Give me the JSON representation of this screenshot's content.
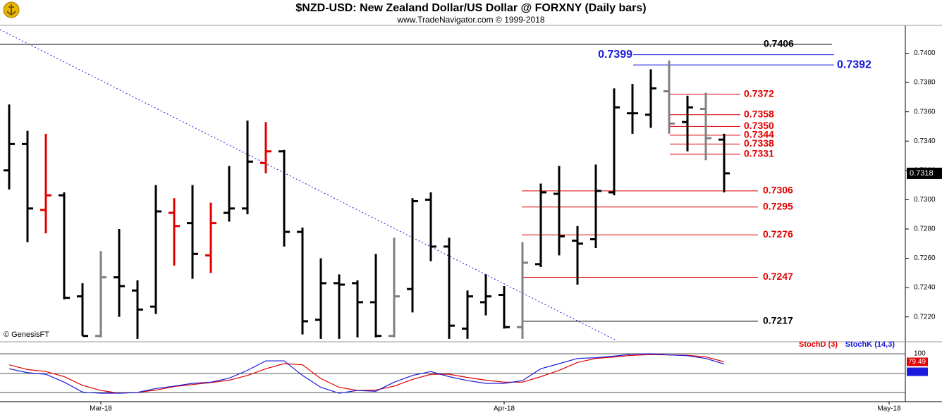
{
  "chart_data": [
    {
      "type": "ohlc",
      "title": "$NZD-USD:  New Zealand Dollar/US Dollar @ FORXNY  (Daily bars)",
      "subtitle": "www.TradeNavigator.com © 1999-2018",
      "source": "© GenesisFT",
      "categories": [
        null,
        null,
        null,
        null,
        null,
        "Mar-18",
        null,
        null,
        null,
        null,
        null,
        null,
        null,
        null,
        null,
        null,
        null,
        null,
        null,
        null,
        null,
        null,
        null,
        null,
        null,
        null,
        null,
        "Apr-18",
        null,
        null,
        null,
        null,
        null,
        null,
        null,
        null,
        null,
        null,
        null,
        null,
        null,
        null,
        null,
        null,
        null,
        null,
        null,
        null,
        "May-18"
      ],
      "open": [
        0.732,
        0.7338,
        0.7293,
        0.7303,
        0.7234,
        0.7207,
        0.7247,
        0.7238,
        0.7227,
        0.7291,
        0.7284,
        0.7262,
        0.7291,
        0.7294,
        0.7325,
        0.7333,
        0.7278,
        0.7218,
        0.7243,
        0.7243,
        0.723,
        0.7207,
        0.7239,
        0.73,
        0.7268,
        0.7212,
        0.723,
        0.7235,
        0.7213,
        0.7256,
        0.7304,
        0.7272,
        0.7273,
        0.7305,
        0.7359,
        0.7358,
        0.7374,
        0.7353,
        0.7362,
        0.7341,
        null,
        null,
        null,
        null,
        null,
        null,
        null,
        null,
        null
      ],
      "high": [
        0.7365,
        0.7347,
        0.7345,
        0.7305,
        0.7243,
        0.7265,
        0.728,
        0.7245,
        0.731,
        0.7301,
        0.731,
        0.7298,
        0.7323,
        0.7354,
        0.7353,
        0.7334,
        0.7281,
        0.726,
        0.7249,
        0.7245,
        0.7263,
        0.7274,
        0.7301,
        0.7305,
        0.7274,
        0.7238,
        0.7249,
        0.7241,
        0.7271,
        0.7311,
        0.7323,
        0.7282,
        0.7324,
        0.7376,
        0.7379,
        0.7389,
        0.7395,
        0.7371,
        0.7373,
        0.7345,
        null,
        null,
        null,
        null,
        null,
        null,
        null,
        null,
        null
      ],
      "low": [
        0.7307,
        0.7271,
        0.7277,
        0.7232,
        0.7207,
        0.7206,
        0.722,
        0.7205,
        0.7222,
        0.7255,
        0.7246,
        0.725,
        0.7285,
        0.729,
        0.7318,
        0.7268,
        0.7208,
        0.7205,
        0.7205,
        0.7206,
        0.7206,
        0.7206,
        0.7223,
        0.7258,
        0.7205,
        0.7205,
        0.7221,
        0.7212,
        0.7205,
        0.7254,
        0.7262,
        0.7242,
        0.7267,
        0.7303,
        0.7345,
        0.7349,
        0.7345,
        0.7333,
        0.7327,
        0.7305,
        null,
        null,
        null,
        null,
        null,
        null,
        null,
        null,
        null
      ],
      "close": [
        0.7338,
        0.7294,
        0.7303,
        0.7233,
        0.7207,
        0.7247,
        0.7241,
        0.7225,
        0.7292,
        0.7282,
        0.7263,
        0.7284,
        0.7294,
        0.7326,
        0.7333,
        0.7278,
        0.7217,
        0.7243,
        0.7242,
        0.723,
        0.7207,
        0.7234,
        0.7299,
        0.7268,
        0.7214,
        0.7234,
        0.7234,
        0.7213,
        0.7257,
        0.7305,
        0.7275,
        0.727,
        0.7306,
        0.7363,
        0.7359,
        0.7376,
        0.7352,
        0.7363,
        0.7342,
        0.7318,
        null,
        null,
        null,
        null,
        null,
        null,
        null,
        null,
        null
      ],
      "bar_colors": [
        "#000000",
        "#000000",
        "#e00000",
        "#000000",
        "#000000",
        "#808080",
        "#000000",
        "#000000",
        "#000000",
        "#e00000",
        "#000000",
        "#e00000",
        "#000000",
        "#000000",
        "#e00000",
        "#000000",
        "#000000",
        "#000000",
        "#000000",
        "#000000",
        "#000000",
        "#808080",
        "#000000",
        "#000000",
        "#000000",
        "#000000",
        "#000000",
        "#000000",
        "#808080",
        "#000000",
        "#000000",
        "#000000",
        "#000000",
        "#000000",
        "#000000",
        "#000000",
        "#808080",
        "#000000",
        "#808080",
        "#000000",
        null,
        null,
        null,
        null,
        null,
        null,
        null,
        null,
        null
      ],
      "ylim": [
        0.7203,
        0.7419
      ],
      "yticks": [
        {
          "value": 0.722,
          "label": "0.7220"
        },
        {
          "value": 0.724,
          "label": "0.7240"
        },
        {
          "value": 0.726,
          "label": "0.7260"
        },
        {
          "value": 0.728,
          "label": "0.7280"
        },
        {
          "value": 0.73,
          "label": "0.7300"
        },
        {
          "value": 0.732,
          "label": "0.7320"
        },
        {
          "value": 0.734,
          "label": "0.7340"
        },
        {
          "value": 0.736,
          "label": "0.7360"
        },
        {
          "value": 0.738,
          "label": "0.7380"
        },
        {
          "value": 0.74,
          "label": "0.7400"
        }
      ],
      "levels": [
        {
          "value": 0.7406,
          "color": "#000000"
        },
        {
          "value": 0.7399,
          "color": "#1a1adc"
        },
        {
          "value": 0.7392,
          "color": "#1a1adc"
        },
        {
          "value": 0.7372,
          "color": "#e00000"
        },
        {
          "value": 0.7358,
          "color": "#e00000"
        },
        {
          "value": 0.735,
          "label": "0.7350",
          "color": "#e00000"
        },
        {
          "value": 0.7344,
          "color": "#e00000"
        },
        {
          "value": 0.7338,
          "color": "#e00000"
        },
        {
          "value": 0.7331,
          "color": "#e00000"
        },
        {
          "value": 0.7306,
          "color": "#e00000"
        },
        {
          "value": 0.7295,
          "color": "#e00000"
        },
        {
          "value": 0.7276,
          "color": "#e00000"
        },
        {
          "value": 0.7247,
          "color": "#e00000"
        },
        {
          "value": 0.7217,
          "color": "#000000"
        }
      ]
    },
    {
      "type": "line",
      "series": [
        {
          "name": "StochD (3)",
          "color": "#e00000",
          "values": [
            72,
            60,
            55,
            42,
            20,
            7,
            0,
            2,
            8,
            17,
            22,
            27,
            33,
            45,
            62,
            75,
            72,
            37,
            15,
            7,
            8,
            18,
            35,
            48,
            48,
            40,
            33,
            28,
            28,
            42,
            58,
            78,
            88,
            92,
            96,
            98,
            97,
            96,
            92,
            79.49,
            null,
            null,
            null,
            null,
            null,
            null,
            null,
            null,
            null
          ]
        },
        {
          "name": "StochK (14,3)",
          "color": "#1a1adc",
          "values": [
            62,
            52,
            48,
            28,
            3,
            0,
            0,
            2,
            12,
            18,
            25,
            28,
            38,
            58,
            82,
            82,
            45,
            15,
            0,
            7,
            5,
            28,
            45,
            55,
            42,
            32,
            25,
            25,
            32,
            62,
            75,
            88,
            90,
            94,
            99,
            100,
            97,
            95,
            88,
            74,
            null,
            null,
            null,
            null,
            null,
            null,
            null,
            null,
            null
          ]
        }
      ],
      "ylim": [
        -21.4,
        121.4
      ],
      "yticks": [
        50,
        100
      ]
    }
  ]
}
